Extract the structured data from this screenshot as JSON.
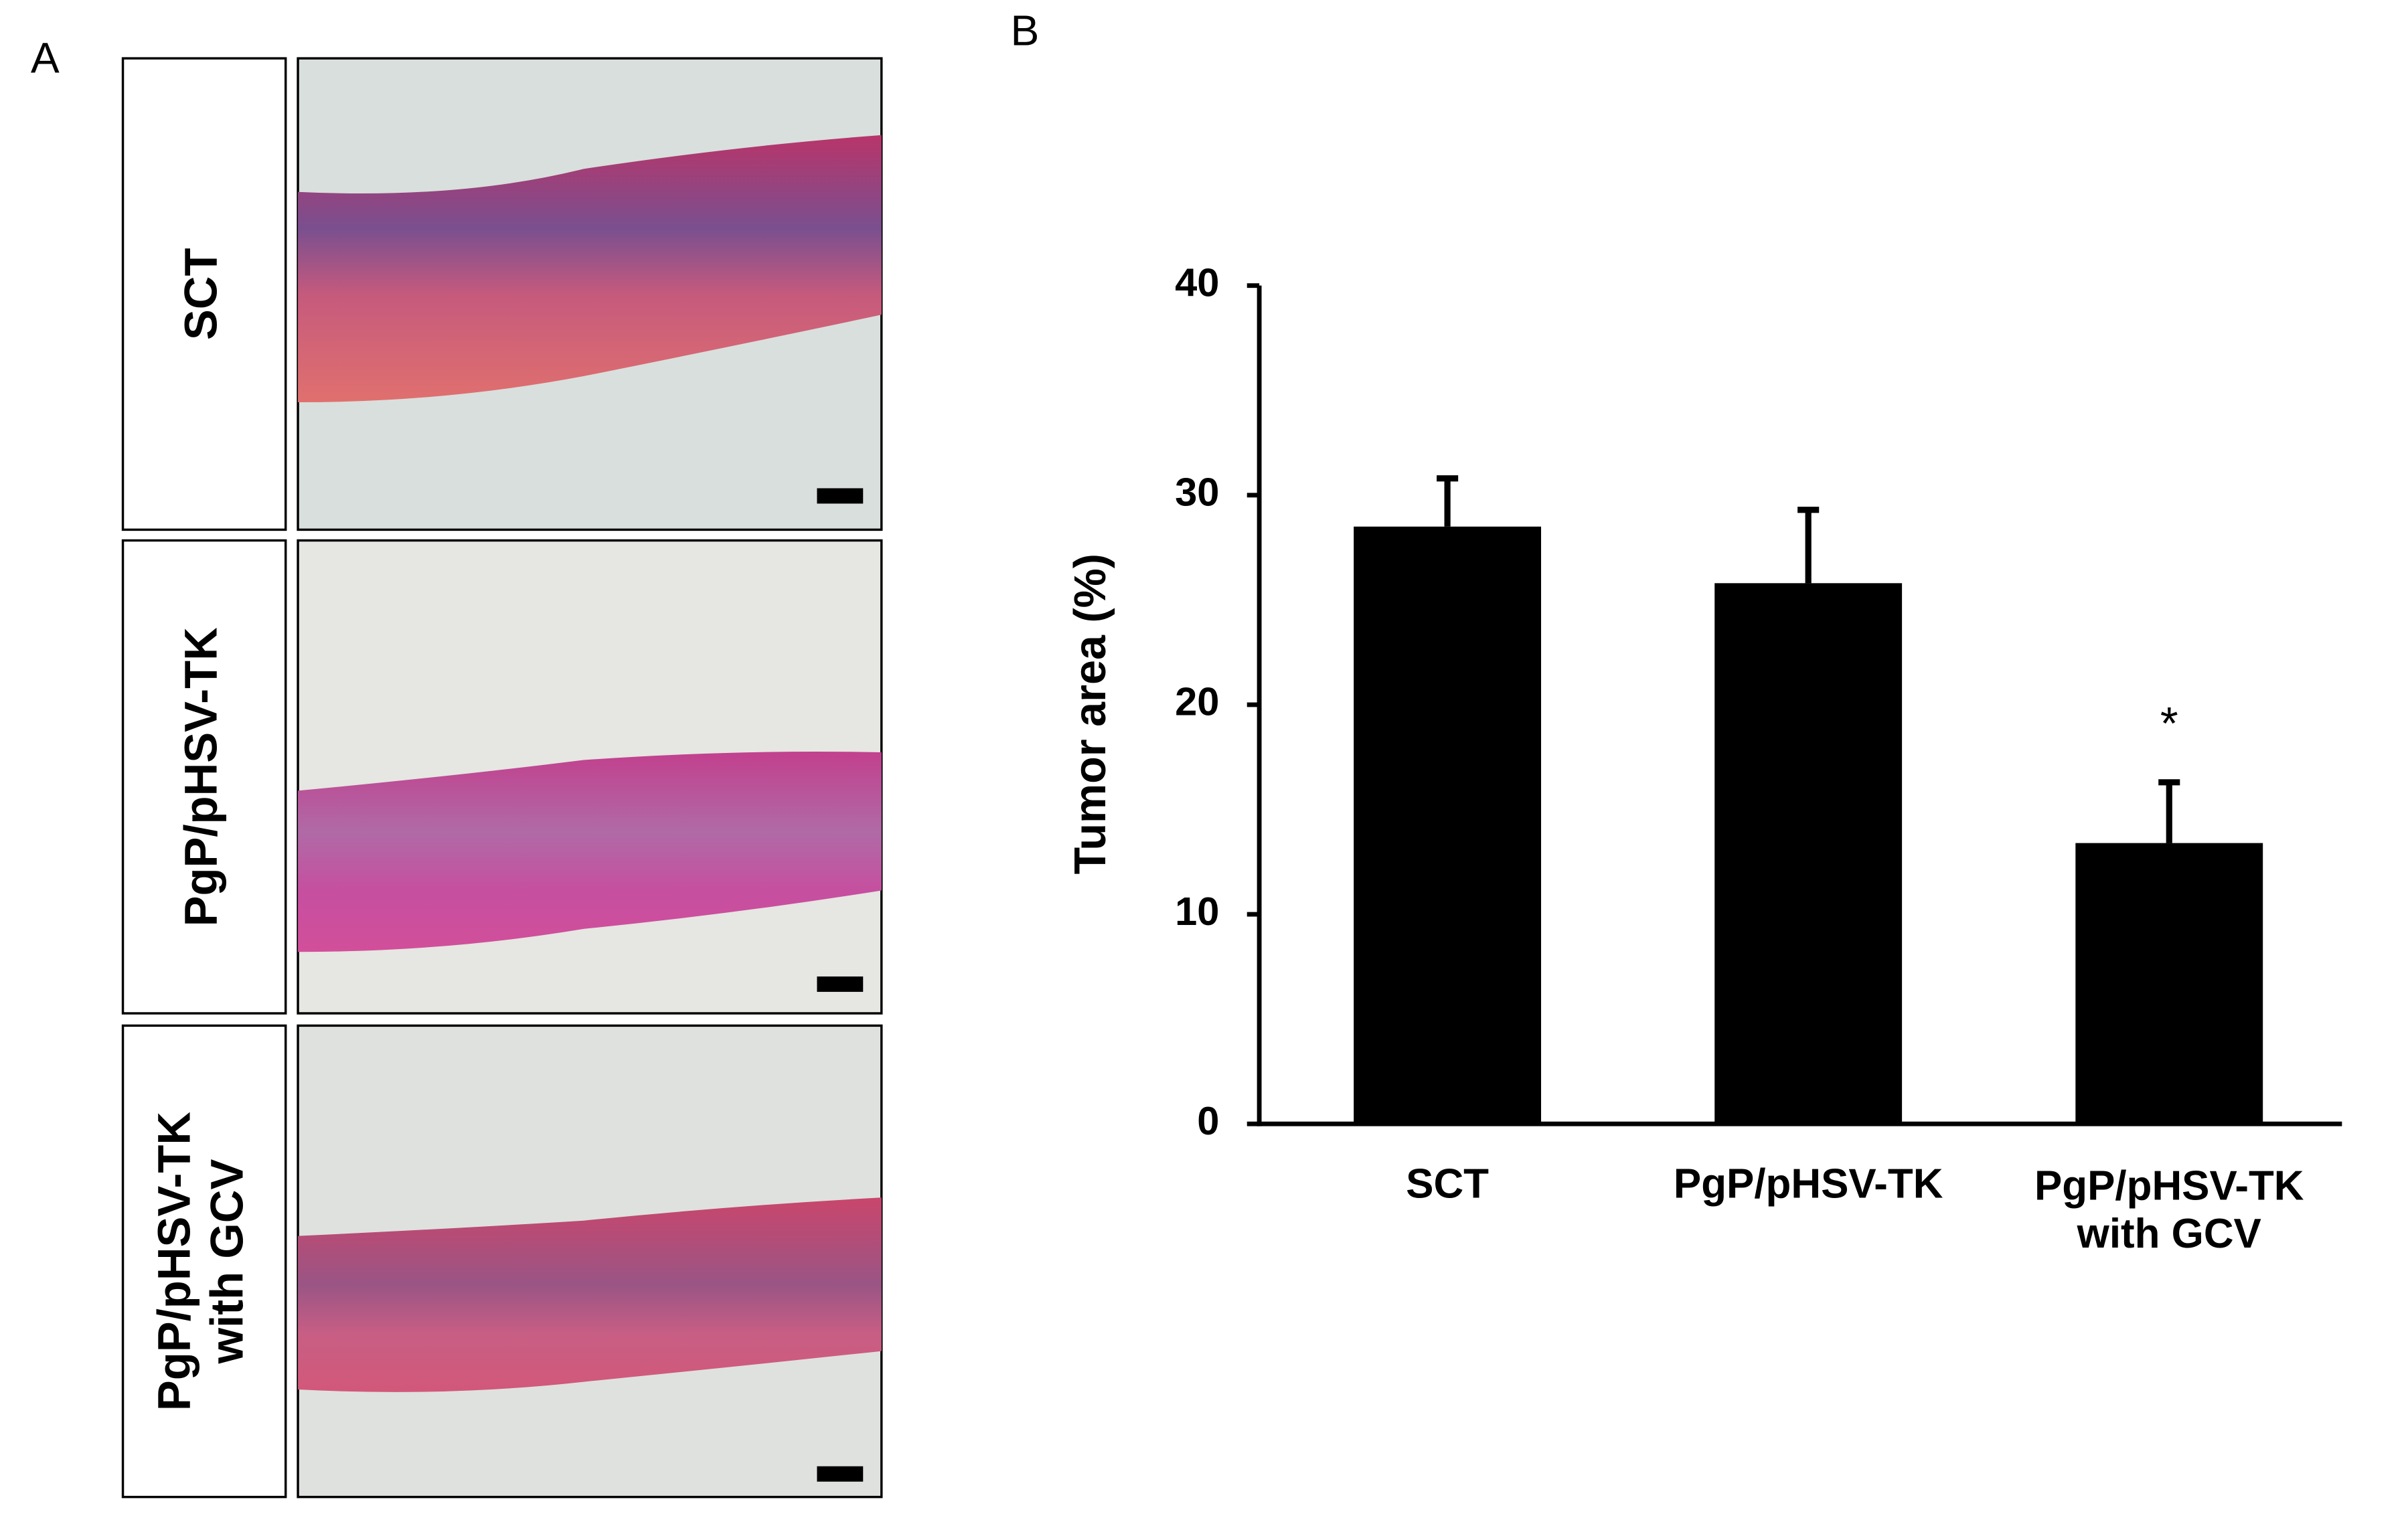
{
  "panels": {
    "a_label": "A",
    "b_label": "B"
  },
  "panel_a": {
    "rows": [
      "SCT",
      "PgP/pHSV-TK",
      "PgP/pHSV-TK\nwith GCV"
    ]
  },
  "chart_data": {
    "type": "bar",
    "categories": [
      "SCT",
      "PgP/pHSV-TK",
      "PgP/pHSV-TK\nwith GCV"
    ],
    "values": [
      28.5,
      25.8,
      13.4
    ],
    "errors": [
      2.3,
      3.5,
      2.9
    ],
    "color": "#000000",
    "ylabel": "Tumor area (%)",
    "ylim": [
      0,
      40
    ],
    "yticks": [
      0,
      10,
      20,
      30,
      40
    ],
    "annotations": [
      {
        "category": 2,
        "text": "*"
      }
    ],
    "grid": false
  }
}
